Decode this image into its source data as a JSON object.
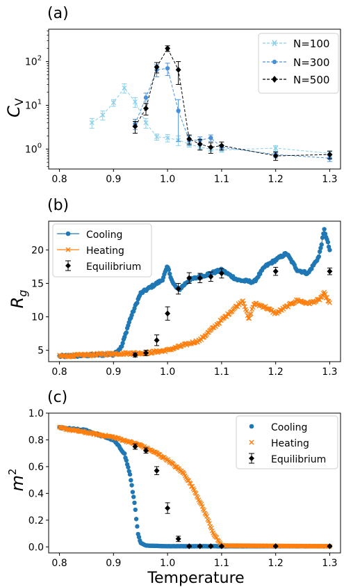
{
  "chart_data": [
    {
      "type": "line",
      "panel_label": "(a)",
      "ylabel_main": "C",
      "ylabel_sub": "V",
      "xlabel": "",
      "yscale": "log",
      "xlim": [
        0.78,
        1.32
      ],
      "ylim": [
        0.35,
        550
      ],
      "xticks": [
        "0.8",
        "0.9",
        "1.0",
        "1.1",
        "1.2",
        "1.3"
      ],
      "yticks": [
        {
          "base": "10",
          "exp": "0",
          "value": 1
        },
        {
          "base": "10",
          "exp": "1",
          "value": 10
        },
        {
          "base": "10",
          "exp": "2",
          "value": 100
        }
      ],
      "legend_position": "upper right",
      "series": [
        {
          "name": "N=100",
          "color": "#87ceeb",
          "marker": "x",
          "x": [
            0.86,
            0.88,
            0.9,
            0.92,
            0.94,
            0.96,
            0.98,
            1.0,
            1.02,
            1.04,
            1.06,
            1.08,
            1.1,
            1.2,
            1.3
          ],
          "y": [
            4.0,
            6.0,
            11.5,
            25.0,
            12.0,
            4.0,
            1.9,
            1.8,
            1.6,
            1.3,
            1.1,
            1.0,
            0.95,
            1.05,
            0.8
          ],
          "err": [
            1.0,
            1.4,
            2.0,
            6.0,
            3.0,
            1.0,
            0.3,
            0.35,
            0.4,
            0.2,
            0.15,
            0.1,
            0.1,
            0.15,
            0.1
          ]
        },
        {
          "name": "N=300",
          "color": "#4a90d9",
          "marker": "o",
          "x": [
            0.94,
            0.96,
            0.98,
            1.0,
            1.02,
            1.04,
            1.06,
            1.08,
            1.1,
            1.2,
            1.3
          ],
          "y": [
            3.8,
            15.0,
            65.0,
            70.0,
            7.5,
            1.6,
            1.6,
            1.8,
            1.1,
            0.75,
            0.62
          ],
          "err": [
            1.0,
            4.0,
            20.0,
            22.0,
            6.0,
            0.4,
            0.3,
            0.3,
            0.15,
            0.12,
            0.1
          ]
        },
        {
          "name": "N=500",
          "color": "#000000",
          "marker": "D",
          "x": [
            0.94,
            0.96,
            0.98,
            1.0,
            1.02,
            1.04,
            1.06,
            1.08,
            1.1,
            1.2,
            1.3
          ],
          "y": [
            3.3,
            8.5,
            75.0,
            200.0,
            65.0,
            1.7,
            1.3,
            1.1,
            1.2,
            0.7,
            0.75
          ],
          "err": [
            1.0,
            2.5,
            20.0,
            30.0,
            35.0,
            0.4,
            0.35,
            0.3,
            0.25,
            0.15,
            0.15
          ]
        }
      ]
    },
    {
      "type": "scatter",
      "panel_label": "(b)",
      "ylabel_main": "R",
      "ylabel_sub": "g",
      "xlabel": "",
      "xlim": [
        0.78,
        1.32
      ],
      "ylim": [
        3.3,
        24.3
      ],
      "xticks": [
        "0.8",
        "0.9",
        "1.0",
        "1.1",
        "1.2",
        "1.3"
      ],
      "yticks": [
        "5",
        "10",
        "15",
        "20"
      ],
      "legend_position": "upper left",
      "series": [
        {
          "name": "Cooling",
          "color": "#1f77b4",
          "marker": "o-line",
          "knots_x": [
            0.8,
            0.9,
            0.915,
            0.93,
            0.95,
            0.97,
            0.99,
            1.0,
            1.01,
            1.02,
            1.04,
            1.06,
            1.08,
            1.1,
            1.13,
            1.16,
            1.18,
            1.2,
            1.22,
            1.24,
            1.26,
            1.28,
            1.29,
            1.3
          ],
          "knots_y": [
            4.1,
            4.4,
            5.5,
            9.5,
            13.5,
            14.5,
            15.5,
            17.5,
            15.0,
            14.0,
            15.5,
            16.0,
            16.5,
            17.0,
            15.5,
            15.2,
            17.5,
            18.5,
            19.5,
            17.0,
            16.5,
            19.0,
            23.0,
            20.0
          ],
          "n_points": 300
        },
        {
          "name": "Heating",
          "color": "#ff7f0e",
          "marker": "x-line",
          "knots_x": [
            0.8,
            0.9,
            0.96,
            1.0,
            1.04,
            1.06,
            1.08,
            1.1,
            1.12,
            1.14,
            1.15,
            1.16,
            1.18,
            1.2,
            1.22,
            1.24,
            1.26,
            1.28,
            1.29,
            1.3
          ],
          "knots_y": [
            4.1,
            4.5,
            4.6,
            5.0,
            6.0,
            6.5,
            8.0,
            9.5,
            11.0,
            12.5,
            9.5,
            12.0,
            11.5,
            10.5,
            11.5,
            12.5,
            12.0,
            12.5,
            13.5,
            12.0
          ],
          "n_points": 300
        },
        {
          "name": "Equilibrium",
          "color": "#000000",
          "marker": "D",
          "x": [
            0.94,
            0.96,
            0.98,
            1.0,
            1.02,
            1.04,
            1.06,
            1.08,
            1.1,
            1.2,
            1.3
          ],
          "y": [
            4.3,
            4.6,
            6.5,
            10.5,
            14.2,
            15.8,
            15.8,
            16.0,
            16.5,
            16.8,
            16.8
          ],
          "err": [
            0.3,
            0.4,
            0.8,
            1.0,
            0.8,
            0.8,
            0.7,
            0.7,
            0.7,
            0.6,
            0.5
          ]
        }
      ]
    },
    {
      "type": "scatter",
      "panel_label": "(c)",
      "ylabel_main": "m",
      "ylabel_sup": "2",
      "xlabel": "Temperature",
      "xlim": [
        0.78,
        1.32
      ],
      "ylim": [
        -0.045,
        1.0
      ],
      "xticks": [
        "0.8",
        "0.9",
        "1.0",
        "1.1",
        "1.2",
        "1.3"
      ],
      "yticks": [
        "0.0",
        "0.2",
        "0.4",
        "0.6",
        "0.8",
        "1.0"
      ],
      "legend_position": "upper right",
      "series": [
        {
          "name": "Cooling",
          "color": "#1f77b4",
          "marker": "o",
          "knots_x": [
            0.8,
            0.85,
            0.9,
            0.92,
            0.93,
            0.94,
            0.945,
            0.95,
            0.96,
            1.0,
            1.3
          ],
          "knots_y": [
            0.89,
            0.87,
            0.8,
            0.7,
            0.55,
            0.3,
            0.1,
            0.03,
            0.01,
            0.005,
            0.005
          ],
          "n_points": 300
        },
        {
          "name": "Heating",
          "color": "#ff7f0e",
          "marker": "x",
          "knots_x": [
            0.8,
            0.9,
            0.95,
            0.98,
            1.0,
            1.03,
            1.05,
            1.07,
            1.085,
            1.1,
            1.3
          ],
          "knots_y": [
            0.89,
            0.82,
            0.76,
            0.7,
            0.65,
            0.55,
            0.42,
            0.25,
            0.1,
            0.01,
            0.005
          ],
          "n_points": 300
        },
        {
          "name": "Equilibrium",
          "color": "#000000",
          "marker": "D",
          "x": [
            0.94,
            0.96,
            0.98,
            1.0,
            1.02,
            1.04,
            1.06,
            1.08,
            1.1,
            1.2,
            1.3
          ],
          "y": [
            0.75,
            0.72,
            0.57,
            0.29,
            0.06,
            0.005,
            0.005,
            0.005,
            0.005,
            0.005,
            0.005
          ],
          "err": [
            0.02,
            0.02,
            0.03,
            0.04,
            0.02,
            0.005,
            0.005,
            0.005,
            0.005,
            0.005,
            0.005
          ]
        }
      ]
    }
  ]
}
